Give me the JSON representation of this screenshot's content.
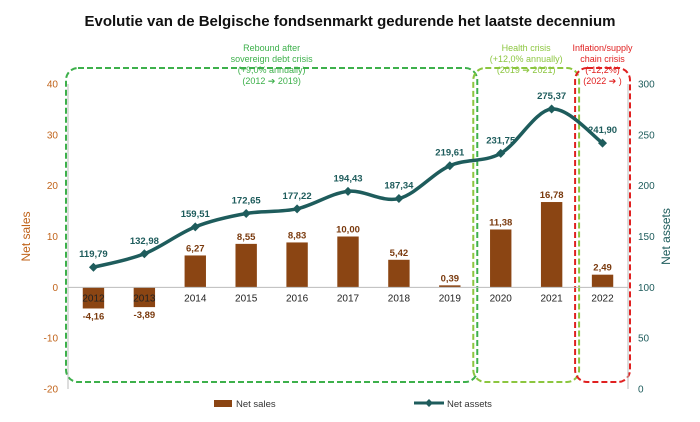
{
  "chart_data": {
    "type": "bar+line",
    "title": "Evolutie van de Belgische fondsenmarkt gedurende het laatste decennium",
    "categories": [
      "2012",
      "2013",
      "2014",
      "2015",
      "2016",
      "2017",
      "2018",
      "2019",
      "2020",
      "2021",
      "2022"
    ],
    "series": [
      {
        "name": "Net sales",
        "type": "bar",
        "axis": "left",
        "color": "#8b4513",
        "values": [
          -4.16,
          -3.89,
          6.27,
          8.55,
          8.83,
          10.0,
          5.42,
          0.39,
          11.38,
          16.78,
          2.49
        ],
        "labels": [
          "-4,16",
          "-3,89",
          "6,27",
          "8,55",
          "8,83",
          "10,00",
          "5,42",
          "0,39",
          "11,38",
          "16,78",
          "2,49"
        ]
      },
      {
        "name": "Net assets",
        "type": "line",
        "axis": "right",
        "color": "#1e5c5c",
        "values": [
          119.79,
          132.98,
          159.51,
          172.65,
          177.22,
          194.43,
          187.34,
          219.61,
          231.75,
          275.37,
          241.9
        ],
        "labels": [
          "119,79",
          "132,98",
          "159,51",
          "172,65",
          "177,22",
          "194,43",
          "187,34",
          "219,61",
          "231,75",
          "275,37",
          "241,90"
        ]
      }
    ],
    "y_left": {
      "label": "Net sales",
      "min": -20,
      "max": 40,
      "ticks": [
        "-20",
        "-10",
        "0",
        "10",
        "20",
        "30",
        "40"
      ],
      "color": "#c0631a"
    },
    "y_right": {
      "label": "Net assets",
      "min": 0,
      "max": 300,
      "ticks": [
        "0",
        "50",
        "100",
        "150",
        "200",
        "250",
        "300"
      ],
      "color": "#1e5c5c"
    },
    "annotations": [
      {
        "from": "2012",
        "to": "2019",
        "color": "#3db04b",
        "lines": [
          "Rebound after",
          "sovereign debt crisis",
          "(+9,0% annually)",
          "(2012 ➔ 2019)"
        ]
      },
      {
        "from": "2020",
        "to": "2021",
        "color": "#8cc63f",
        "lines": [
          "Health crisis",
          "(+12,0% annually)",
          "(2019 ➔ 2021)"
        ]
      },
      {
        "from": "2022",
        "to": "2022",
        "color": "#e02020",
        "lines": [
          "Inflation/supply",
          "chain crisis",
          "(-12,2%)",
          "(2022 ➔ )"
        ]
      }
    ],
    "legend": {
      "position": "bottom",
      "items": [
        "Net sales",
        "Net assets"
      ]
    },
    "grid": false
  }
}
